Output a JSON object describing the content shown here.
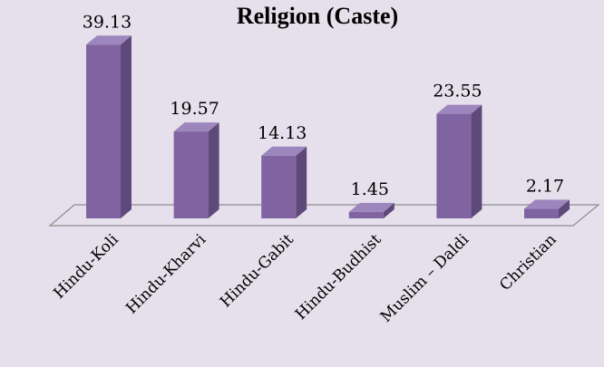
{
  "chart_data": {
    "type": "bar3d",
    "title": "Religion (Caste)",
    "categories": [
      "Hindu-Koli",
      "Hindu-Kharvi",
      "Hindu-Gabit",
      "Hindu-Budhist",
      "Muslim – Daldi",
      "Christian"
    ],
    "values": [
      39.13,
      19.57,
      14.13,
      1.45,
      23.55,
      2.17
    ],
    "color": "#8064a2"
  }
}
